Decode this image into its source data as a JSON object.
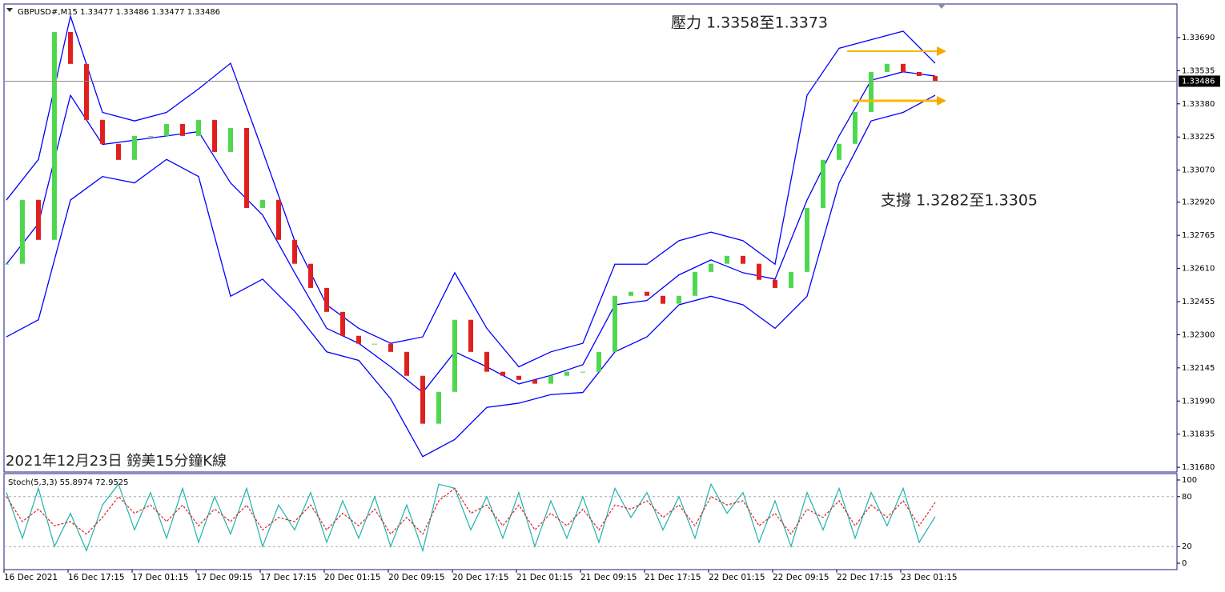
{
  "chart_data": [
    {
      "type": "candlestick",
      "header": "GBPUSD#,M15  1.33477 1.33486 1.33477 1.33486",
      "annotations": [
        "壓力 1.3358至1.3373",
        "支撐 1.3282至1.3305",
        "2021年12月23日 鎊美15分鐘K線"
      ],
      "categories": [
        "16 Dec 2021",
        null,
        null,
        null,
        "16 Dec 17:15",
        null,
        null,
        null,
        "17 Dec 01:15",
        null,
        null,
        null,
        "17 Dec 09:15",
        null,
        null,
        null,
        "17 Dec 17:15",
        null,
        null,
        null,
        "20 Dec 01:15",
        null,
        null,
        null,
        "20 Dec 09:15",
        null,
        null,
        null,
        "20 Dec 17:15",
        null,
        null,
        null,
        "21 Dec 01:15",
        null,
        null,
        null,
        "21 Dec 09:15",
        null,
        null,
        null,
        "21 Dec 17:15",
        null,
        null,
        null,
        "22 Dec 01:15",
        null,
        null,
        null,
        "22 Dec 09:15",
        null,
        null,
        null,
        "22 Dec 17:15",
        null,
        null,
        null,
        "23 Dec 01:15",
        null,
        null
      ],
      "close": [
        1.32632,
        1.32931,
        1.32744,
        1.33716,
        1.33567,
        1.33305,
        1.33193,
        1.33118,
        1.3323,
        1.3323,
        1.33286,
        1.3323,
        1.33305,
        1.33155,
        1.33267,
        1.32893,
        1.32931,
        1.32744,
        1.32632,
        1.32519,
        1.32407,
        1.32295,
        1.32258,
        1.32258,
        1.3222,
        1.32108,
        1.31884,
        1.32033,
        1.3237,
        1.3222,
        1.32127,
        1.32108,
        1.32089,
        1.32071,
        1.32108,
        1.32127,
        1.32127,
        1.3222,
        1.32482,
        1.32501,
        1.32482,
        1.32445,
        1.32482,
        1.32594,
        1.32632,
        1.32669,
        1.32632,
        1.32557,
        1.32519,
        1.32594,
        1.32893,
        1.33118,
        1.33193,
        1.33342,
        1.33529,
        1.33567,
        1.33529,
        1.3351,
        1.33486
      ],
      "up_color": "#4fd84f",
      "down_color": "#e02020",
      "overlay_x": [
        0,
        2,
        4,
        6,
        8,
        10,
        12,
        14,
        16,
        18,
        20,
        22,
        24,
        26,
        28,
        30,
        32,
        34,
        36,
        38,
        40,
        42,
        44,
        46,
        48,
        50,
        52,
        54,
        56,
        58
      ],
      "overlays": [
        {
          "color": "#0000ff",
          "values": [
            1.3293,
            1.3312,
            1.3379,
            1.3334,
            1.333,
            1.3334,
            1.3345,
            1.3357,
            1.3316,
            1.3274,
            1.3244,
            1.3233,
            1.3226,
            1.3229,
            1.3259,
            1.3233,
            1.3215,
            1.3222,
            1.3226,
            1.3263,
            1.3263,
            1.3274,
            1.3278,
            1.3274,
            1.3263,
            1.3342,
            1.3364,
            1.3368,
            1.3372,
            1.3357
          ]
        },
        {
          "color": "#0000ff",
          "values": [
            1.3263,
            1.3282,
            1.3342,
            1.3319,
            1.3321,
            1.3323,
            1.3325,
            1.3301,
            1.3286,
            1.3259,
            1.3233,
            1.3226,
            1.3215,
            1.3203,
            1.3222,
            1.3215,
            1.3207,
            1.3211,
            1.3216,
            1.3244,
            1.3246,
            1.3258,
            1.3265,
            1.3259,
            1.3256,
            1.3293,
            1.3323,
            1.3349,
            1.3353,
            1.3351
          ]
        },
        {
          "color": "#0000ff",
          "values": [
            1.3229,
            1.3237,
            1.3293,
            1.3304,
            1.3301,
            1.3312,
            1.3304,
            1.3248,
            1.3256,
            1.3241,
            1.3222,
            1.3218,
            1.32,
            1.3173,
            1.3181,
            1.3196,
            1.3198,
            1.3202,
            1.3203,
            1.3222,
            1.3229,
            1.3244,
            1.3248,
            1.3244,
            1.3233,
            1.3248,
            1.3301,
            1.333,
            1.3334,
            1.3342
          ]
        }
      ],
      "current_price": {
        "value": 1.33486,
        "label": "1.33486"
      },
      "ylim": [
        1.31658,
        1.33847
      ],
      "yticks": [
        {
          "value": 1.3369,
          "label": "1.33690"
        },
        {
          "value": 1.33535,
          "label": "1.33535"
        },
        {
          "value": 1.3338,
          "label": "1.33380"
        },
        {
          "value": 1.33225,
          "label": "1.33225"
        },
        {
          "value": 1.3307,
          "label": "1.33070"
        },
        {
          "value": 1.3292,
          "label": "1.32920"
        },
        {
          "value": 1.32765,
          "label": "1.32765"
        },
        {
          "value": 1.3261,
          "label": "1.32610"
        },
        {
          "value": 1.32455,
          "label": "1.32455"
        },
        {
          "value": 1.323,
          "label": "1.32300"
        },
        {
          "value": 1.32145,
          "label": "1.32145"
        },
        {
          "value": 1.3199,
          "label": "1.31990"
        },
        {
          "value": 1.31835,
          "label": "1.31835"
        },
        {
          "value": 1.3168,
          "label": "1.31680"
        }
      ]
    },
    {
      "type": "line",
      "title": "Stoch(5,3,3) 55.8974 72.9525",
      "series": [
        {
          "color": "#20b2aa",
          "values": [
            85,
            30,
            90,
            20,
            60,
            15,
            70,
            95,
            40,
            85,
            30,
            90,
            25,
            80,
            35,
            90,
            20,
            70,
            40,
            85,
            25,
            75,
            30,
            80,
            20,
            70,
            15,
            95,
            90,
            40,
            80,
            30,
            85,
            20,
            75,
            30,
            80,
            25,
            90,
            55,
            85,
            40,
            80,
            30,
            95,
            60,
            85,
            25,
            75,
            20,
            85,
            40,
            90,
            30,
            85,
            45,
            90,
            25,
            55.8974
          ]
        },
        {
          "color": "#e02020",
          "values": [
            80,
            50,
            65,
            45,
            50,
            35,
            55,
            80,
            60,
            70,
            50,
            70,
            45,
            65,
            50,
            70,
            40,
            55,
            50,
            70,
            40,
            60,
            45,
            65,
            35,
            55,
            35,
            75,
            90,
            60,
            70,
            45,
            70,
            40,
            60,
            45,
            65,
            40,
            70,
            65,
            75,
            55,
            70,
            45,
            80,
            70,
            75,
            45,
            60,
            35,
            65,
            55,
            75,
            45,
            70,
            55,
            75,
            45,
            72.9525
          ]
        }
      ],
      "levels": [
        80,
        20
      ],
      "ylim": [
        -7.7,
        107.7
      ],
      "yticks": [
        100,
        80,
        20,
        0
      ]
    }
  ]
}
